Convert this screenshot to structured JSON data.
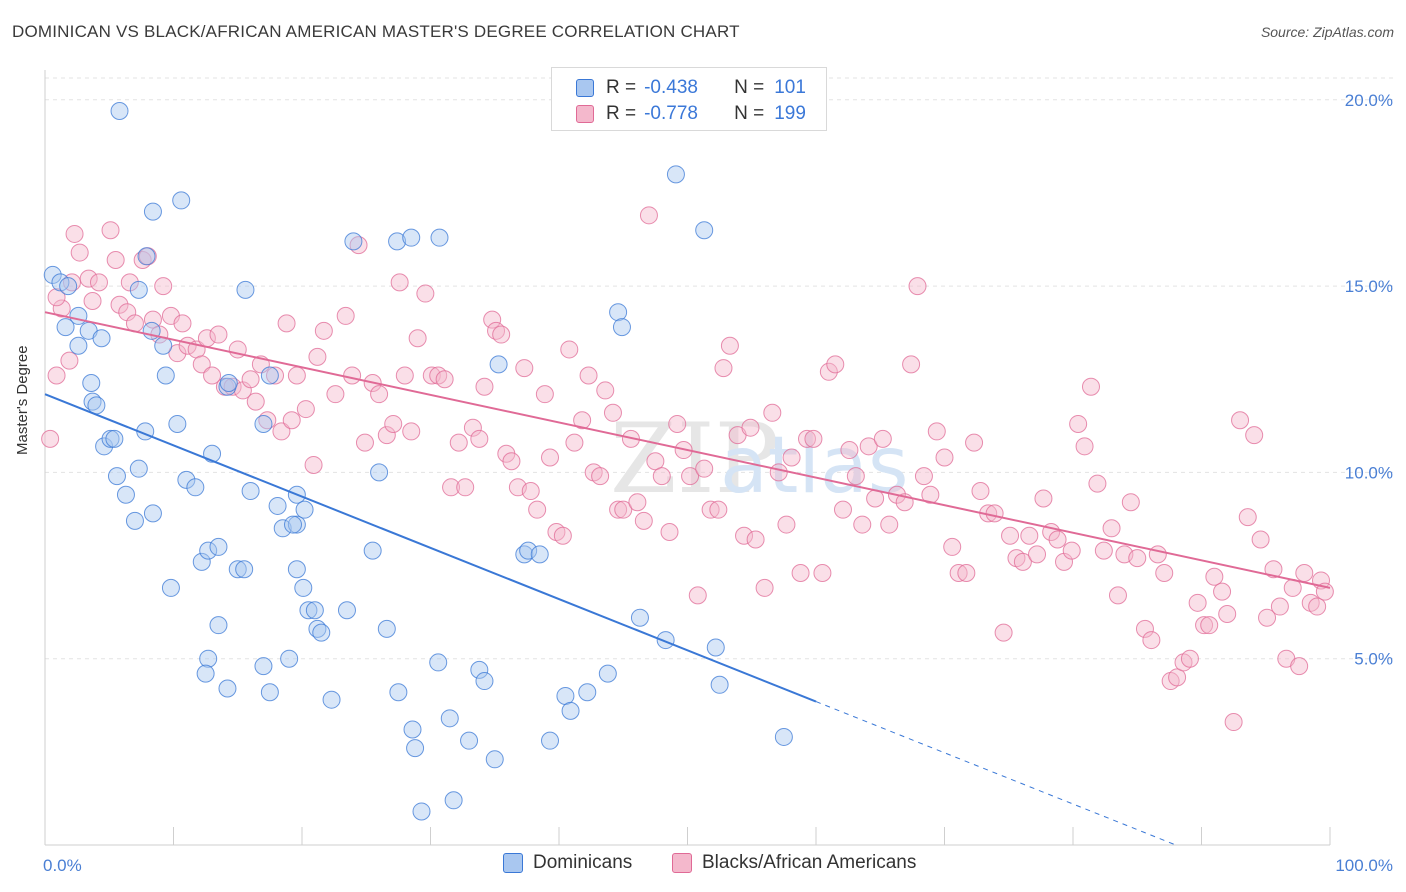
{
  "header": {
    "title": "DOMINICAN VS BLACK/AFRICAN AMERICAN MASTER'S DEGREE CORRELATION CHART",
    "source": "Source: ZipAtlas.com"
  },
  "colors": {
    "blue": "#3a78d6",
    "blue_fill": "#a9c7f0",
    "pink": "#e06a96",
    "pink_fill": "#f4b8cc",
    "tick_text": "#4a7fd4"
  },
  "legend": {
    "rows": [
      {
        "r_label": "R =",
        "r_value": "-0.438",
        "n_label": "N =",
        "n_value": "101"
      },
      {
        "r_label": "R =",
        "r_value": "-0.778",
        "n_label": "N =",
        "n_value": "199"
      }
    ]
  },
  "bottom_legend": {
    "items": [
      "Dominicans",
      "Blacks/African Americans"
    ]
  },
  "chart_data": {
    "type": "scatter",
    "title": "DOMINICAN VS BLACK/AFRICAN AMERICAN MASTER'S DEGREE CORRELATION CHART",
    "xlabel": "",
    "ylabel": "Master's Degree",
    "xlim": [
      0,
      100
    ],
    "ylim": [
      0,
      20.8
    ],
    "x_tick_labels": [
      "0.0%",
      "100.0%"
    ],
    "y_ticks": [
      5,
      10,
      15,
      20
    ],
    "y_tick_labels": [
      "5.0%",
      "10.0%",
      "15.0%",
      "20.0%"
    ],
    "grid": true,
    "legend_position": "top-center",
    "watermark": "ZIPatlas",
    "series": [
      {
        "name": "Dominicans",
        "color": "#3a78d6",
        "trend": {
          "x0": 0,
          "y0": 12.1,
          "x1": 60,
          "y1": 3.85,
          "dashed_to_x": 100,
          "dashed_to_y": -1.65
        },
        "points": [
          [
            0.6,
            15.3
          ],
          [
            1.2,
            15.1
          ],
          [
            1.8,
            15.0
          ],
          [
            2.6,
            14.2
          ],
          [
            1.6,
            13.9
          ],
          [
            3.4,
            13.8
          ],
          [
            4.4,
            13.6
          ],
          [
            2.6,
            13.4
          ],
          [
            3.6,
            12.4
          ],
          [
            3.7,
            11.9
          ],
          [
            4.0,
            11.8
          ],
          [
            4.6,
            10.7
          ],
          [
            5.1,
            10.9
          ],
          [
            5.4,
            10.9
          ],
          [
            5.6,
            9.9
          ],
          [
            6.3,
            9.4
          ],
          [
            7.0,
            8.7
          ],
          [
            7.3,
            10.1
          ],
          [
            7.8,
            11.1
          ],
          [
            8.4,
            8.9
          ],
          [
            9.2,
            13.4
          ],
          [
            9.4,
            12.6
          ],
          [
            8.4,
            17.0
          ],
          [
            7.9,
            15.8
          ],
          [
            10.6,
            17.3
          ],
          [
            10.3,
            11.3
          ],
          [
            11.0,
            9.8
          ],
          [
            11.7,
            9.6
          ],
          [
            13.0,
            10.5
          ],
          [
            12.2,
            7.6
          ],
          [
            12.7,
            7.9
          ],
          [
            13.5,
            8.0
          ],
          [
            9.8,
            6.9
          ],
          [
            14.2,
            12.3
          ],
          [
            14.3,
            12.4
          ],
          [
            15.0,
            7.4
          ],
          [
            15.5,
            7.4
          ],
          [
            15.6,
            14.9
          ],
          [
            16.0,
            9.5
          ],
          [
            17.0,
            11.3
          ],
          [
            17.5,
            12.6
          ],
          [
            18.1,
            9.1
          ],
          [
            18.5,
            8.5
          ],
          [
            19.6,
            9.4
          ],
          [
            19.6,
            8.6
          ],
          [
            19.3,
            8.6
          ],
          [
            20.1,
            6.9
          ],
          [
            20.2,
            9.0
          ],
          [
            20.5,
            6.3
          ],
          [
            21.0,
            6.3
          ],
          [
            21.2,
            5.8
          ],
          [
            21.5,
            5.7
          ],
          [
            22.3,
            3.9
          ],
          [
            23.5,
            6.3
          ],
          [
            19.6,
            7.4
          ],
          [
            13.5,
            5.9
          ],
          [
            12.7,
            5.0
          ],
          [
            12.5,
            4.6
          ],
          [
            14.2,
            4.2
          ],
          [
            17.0,
            4.8
          ],
          [
            17.5,
            4.1
          ],
          [
            19.0,
            5.0
          ],
          [
            25.5,
            7.9
          ],
          [
            26.6,
            5.8
          ],
          [
            27.5,
            4.1
          ],
          [
            28.6,
            3.1
          ],
          [
            28.8,
            2.6
          ],
          [
            29.3,
            0.9
          ],
          [
            30.6,
            4.9
          ],
          [
            31.5,
            3.4
          ],
          [
            31.8,
            1.2
          ],
          [
            33.0,
            2.8
          ],
          [
            33.8,
            4.7
          ],
          [
            34.2,
            4.4
          ],
          [
            35.0,
            2.3
          ],
          [
            35.3,
            12.9
          ],
          [
            37.3,
            7.8
          ],
          [
            37.6,
            7.9
          ],
          [
            38.5,
            7.8
          ],
          [
            39.3,
            2.8
          ],
          [
            40.5,
            4.0
          ],
          [
            40.9,
            3.6
          ],
          [
            42.2,
            4.1
          ],
          [
            43.8,
            4.6
          ],
          [
            44.6,
            14.3
          ],
          [
            44.9,
            13.9
          ],
          [
            46.3,
            6.1
          ],
          [
            48.3,
            5.5
          ],
          [
            49.1,
            18.0
          ],
          [
            51.3,
            16.5
          ],
          [
            52.2,
            5.3
          ],
          [
            52.5,
            4.3
          ],
          [
            57.5,
            2.9
          ],
          [
            7.3,
            14.9
          ],
          [
            8.3,
            13.8
          ],
          [
            24.0,
            16.2
          ],
          [
            27.4,
            16.2
          ],
          [
            28.5,
            16.3
          ],
          [
            30.7,
            16.3
          ],
          [
            5.8,
            19.7
          ],
          [
            26.0,
            10.0
          ]
        ]
      },
      {
        "name": "Blacks/African Americans",
        "color": "#e06a96",
        "trend": {
          "x0": 0,
          "y0": 14.3,
          "x1": 100,
          "y1": 6.9
        },
        "points": [
          [
            0.4,
            10.9
          ],
          [
            0.9,
            12.6
          ],
          [
            1.3,
            14.4
          ],
          [
            2.1,
            15.1
          ],
          [
            2.3,
            16.4
          ],
          [
            2.7,
            15.9
          ],
          [
            3.4,
            15.2
          ],
          [
            3.7,
            14.6
          ],
          [
            4.2,
            15.1
          ],
          [
            5.1,
            16.5
          ],
          [
            5.5,
            15.7
          ],
          [
            5.8,
            14.5
          ],
          [
            6.4,
            14.3
          ],
          [
            6.6,
            15.1
          ],
          [
            7.0,
            14.0
          ],
          [
            7.6,
            15.7
          ],
          [
            8.0,
            15.8
          ],
          [
            8.4,
            14.1
          ],
          [
            8.9,
            13.7
          ],
          [
            9.2,
            15.0
          ],
          [
            9.8,
            14.2
          ],
          [
            10.3,
            13.2
          ],
          [
            10.7,
            14.0
          ],
          [
            11.1,
            13.4
          ],
          [
            11.8,
            13.3
          ],
          [
            12.2,
            12.9
          ],
          [
            12.6,
            13.6
          ],
          [
            13.0,
            12.6
          ],
          [
            13.5,
            13.7
          ],
          [
            14.0,
            12.3
          ],
          [
            14.6,
            12.3
          ],
          [
            15.0,
            13.3
          ],
          [
            15.4,
            12.2
          ],
          [
            16.0,
            12.5
          ],
          [
            16.4,
            11.9
          ],
          [
            16.8,
            12.9
          ],
          [
            17.3,
            11.4
          ],
          [
            17.9,
            12.6
          ],
          [
            18.4,
            11.1
          ],
          [
            18.8,
            14.0
          ],
          [
            19.2,
            11.4
          ],
          [
            19.6,
            12.6
          ],
          [
            20.3,
            11.7
          ],
          [
            20.9,
            10.2
          ],
          [
            21.2,
            13.1
          ],
          [
            21.7,
            13.8
          ],
          [
            22.6,
            12.1
          ],
          [
            23.4,
            14.2
          ],
          [
            23.9,
            12.6
          ],
          [
            24.4,
            16.1
          ],
          [
            24.9,
            10.8
          ],
          [
            25.5,
            12.4
          ],
          [
            26.0,
            12.1
          ],
          [
            26.6,
            11.0
          ],
          [
            27.1,
            11.3
          ],
          [
            27.6,
            15.1
          ],
          [
            28.0,
            12.6
          ],
          [
            28.5,
            11.1
          ],
          [
            29.0,
            13.6
          ],
          [
            29.6,
            14.8
          ],
          [
            30.1,
            12.6
          ],
          [
            30.6,
            12.6
          ],
          [
            31.1,
            12.5
          ],
          [
            31.6,
            9.6
          ],
          [
            32.2,
            10.8
          ],
          [
            32.7,
            9.6
          ],
          [
            33.3,
            11.2
          ],
          [
            33.8,
            10.9
          ],
          [
            34.2,
            12.3
          ],
          [
            34.8,
            14.1
          ],
          [
            35.1,
            13.8
          ],
          [
            35.5,
            13.7
          ],
          [
            35.9,
            10.5
          ],
          [
            36.3,
            10.3
          ],
          [
            36.8,
            9.6
          ],
          [
            37.3,
            12.8
          ],
          [
            37.8,
            9.5
          ],
          [
            38.3,
            9.0
          ],
          [
            38.9,
            12.1
          ],
          [
            39.3,
            10.4
          ],
          [
            39.8,
            8.4
          ],
          [
            40.3,
            8.3
          ],
          [
            40.8,
            13.3
          ],
          [
            41.2,
            10.8
          ],
          [
            41.8,
            11.4
          ],
          [
            42.3,
            12.6
          ],
          [
            42.7,
            10.0
          ],
          [
            43.2,
            9.9
          ],
          [
            43.6,
            12.2
          ],
          [
            44.2,
            11.6
          ],
          [
            44.6,
            9.0
          ],
          [
            45.0,
            9.0
          ],
          [
            45.6,
            10.9
          ],
          [
            46.1,
            9.2
          ],
          [
            46.6,
            8.7
          ],
          [
            47.0,
            16.9
          ],
          [
            47.5,
            10.3
          ],
          [
            48.0,
            9.9
          ],
          [
            48.6,
            8.4
          ],
          [
            49.2,
            11.3
          ],
          [
            49.7,
            10.6
          ],
          [
            50.2,
            9.9
          ],
          [
            50.8,
            6.7
          ],
          [
            51.3,
            10.1
          ],
          [
            51.8,
            9.0
          ],
          [
            52.4,
            9.0
          ],
          [
            52.8,
            12.8
          ],
          [
            53.3,
            13.4
          ],
          [
            53.9,
            11.0
          ],
          [
            54.4,
            8.3
          ],
          [
            54.9,
            11.2
          ],
          [
            55.3,
            8.2
          ],
          [
            56.0,
            6.9
          ],
          [
            56.6,
            11.6
          ],
          [
            57.1,
            10.0
          ],
          [
            57.7,
            8.6
          ],
          [
            58.1,
            10.4
          ],
          [
            58.8,
            7.3
          ],
          [
            59.3,
            10.9
          ],
          [
            59.8,
            10.9
          ],
          [
            60.5,
            7.3
          ],
          [
            61.0,
            12.7
          ],
          [
            61.5,
            12.9
          ],
          [
            62.1,
            9.0
          ],
          [
            62.6,
            10.6
          ],
          [
            63.1,
            9.9
          ],
          [
            63.6,
            8.6
          ],
          [
            64.1,
            10.7
          ],
          [
            64.6,
            9.3
          ],
          [
            65.2,
            10.9
          ],
          [
            65.7,
            8.6
          ],
          [
            66.3,
            9.4
          ],
          [
            66.9,
            9.2
          ],
          [
            67.4,
            12.9
          ],
          [
            67.9,
            15.0
          ],
          [
            68.4,
            9.9
          ],
          [
            68.9,
            9.4
          ],
          [
            69.4,
            11.1
          ],
          [
            70.0,
            10.4
          ],
          [
            70.6,
            8.0
          ],
          [
            71.1,
            7.3
          ],
          [
            71.7,
            7.3
          ],
          [
            72.3,
            10.8
          ],
          [
            72.8,
            9.5
          ],
          [
            73.4,
            8.9
          ],
          [
            73.9,
            8.9
          ],
          [
            74.6,
            5.7
          ],
          [
            75.1,
            8.3
          ],
          [
            75.6,
            7.7
          ],
          [
            76.1,
            7.6
          ],
          [
            76.6,
            8.3
          ],
          [
            77.2,
            7.8
          ],
          [
            77.7,
            9.3
          ],
          [
            78.3,
            8.4
          ],
          [
            78.8,
            8.2
          ],
          [
            79.3,
            7.6
          ],
          [
            79.9,
            7.9
          ],
          [
            80.4,
            11.3
          ],
          [
            80.9,
            10.7
          ],
          [
            81.4,
            12.3
          ],
          [
            81.9,
            9.7
          ],
          [
            82.4,
            7.9
          ],
          [
            83.0,
            8.5
          ],
          [
            83.5,
            6.7
          ],
          [
            84.0,
            7.8
          ],
          [
            84.5,
            9.2
          ],
          [
            85.0,
            7.7
          ],
          [
            85.6,
            5.8
          ],
          [
            86.1,
            5.5
          ],
          [
            86.6,
            7.8
          ],
          [
            87.1,
            7.3
          ],
          [
            87.6,
            4.4
          ],
          [
            88.1,
            4.5
          ],
          [
            88.6,
            4.9
          ],
          [
            89.1,
            5.0
          ],
          [
            89.7,
            6.5
          ],
          [
            90.2,
            5.9
          ],
          [
            90.6,
            5.9
          ],
          [
            91.0,
            7.2
          ],
          [
            91.6,
            6.8
          ],
          [
            92.0,
            6.2
          ],
          [
            92.5,
            3.3
          ],
          [
            93.0,
            11.4
          ],
          [
            93.6,
            8.8
          ],
          [
            94.1,
            11.0
          ],
          [
            94.6,
            8.2
          ],
          [
            95.1,
            6.1
          ],
          [
            95.6,
            7.4
          ],
          [
            96.1,
            6.4
          ],
          [
            96.6,
            5.0
          ],
          [
            97.1,
            6.9
          ],
          [
            97.6,
            4.8
          ],
          [
            98.0,
            7.3
          ],
          [
            98.5,
            6.5
          ],
          [
            99.0,
            6.4
          ],
          [
            99.3,
            7.1
          ],
          [
            99.6,
            6.8
          ],
          [
            0.9,
            14.7
          ],
          [
            1.9,
            13.0
          ]
        ]
      }
    ]
  }
}
